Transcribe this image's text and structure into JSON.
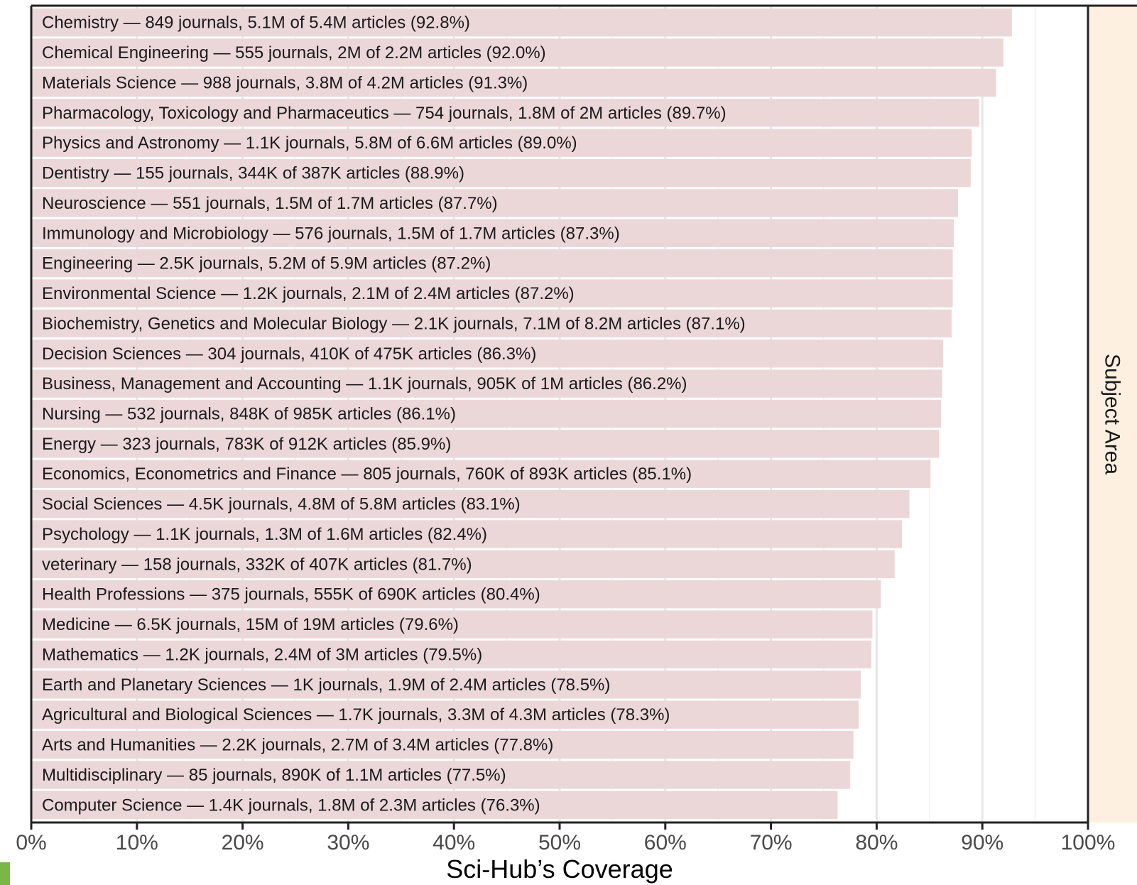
{
  "chart_data": {
    "type": "bar",
    "orientation": "horizontal",
    "xlabel": "Sci-Hub’s Coverage",
    "ylabel": "",
    "facet_label": "Subject Area",
    "xlim": [
      0,
      100
    ],
    "x_unit": "%",
    "x_ticks": [
      "0%",
      "10%",
      "20%",
      "30%",
      "40%",
      "50%",
      "60%",
      "70%",
      "80%",
      "90%",
      "100%"
    ],
    "grid": true,
    "bar_color": "#ecd7d8",
    "facet_color": "#fdf0e1",
    "categories": [
      "Chemistry — 849 journals, 5.1M of 5.4M articles (92.8%)",
      "Chemical Engineering — 555 journals, 2M of 2.2M articles (92.0%)",
      "Materials Science — 988 journals, 3.8M of 4.2M articles (91.3%)",
      "Pharmacology, Toxicology and Pharmaceutics — 754 journals, 1.8M of 2M articles (89.7%)",
      "Physics and Astronomy — 1.1K journals, 5.8M of 6.6M articles (89.0%)",
      "Dentistry — 155 journals, 344K of 387K articles (88.9%)",
      "Neuroscience — 551 journals, 1.5M of 1.7M articles (87.7%)",
      "Immunology and Microbiology — 576 journals, 1.5M of 1.7M articles (87.3%)",
      "Engineering — 2.5K journals, 5.2M of 5.9M articles (87.2%)",
      "Environmental Science — 1.2K journals, 2.1M of 2.4M articles (87.2%)",
      "Biochemistry, Genetics and Molecular Biology — 2.1K journals, 7.1M of 8.2M articles (87.1%)",
      "Decision Sciences — 304 journals, 410K of 475K articles (86.3%)",
      "Business, Management and Accounting — 1.1K journals, 905K of 1M articles (86.2%)",
      "Nursing — 532 journals, 848K of 985K articles (86.1%)",
      "Energy — 323 journals, 783K of 912K articles (85.9%)",
      "Economics, Econometrics and Finance — 805 journals, 760K of 893K articles (85.1%)",
      "Social Sciences — 4.5K journals, 4.8M of 5.8M articles (83.1%)",
      "Psychology — 1.1K journals, 1.3M of 1.6M articles (82.4%)",
      "veterinary — 158 journals, 332K of 407K articles (81.7%)",
      "Health Professions — 375 journals, 555K of 690K articles (80.4%)",
      "Medicine — 6.5K journals, 15M of 19M articles (79.6%)",
      "Mathematics — 1.2K journals, 2.4M of 3M articles (79.5%)",
      "Earth and Planetary Sciences — 1K journals, 1.9M of 2.4M articles (78.5%)",
      "Agricultural and Biological Sciences — 1.7K journals, 3.3M of 4.3M articles (78.3%)",
      "Arts and Humanities — 2.2K journals, 2.7M of 3.4M articles (77.8%)",
      "Multidisciplinary — 85 journals, 890K of 1.1M articles (77.5%)",
      "Computer Science — 1.4K journals, 1.8M of 2.3M articles (76.3%)"
    ],
    "values": [
      92.8,
      92.0,
      91.3,
      89.7,
      89.0,
      88.9,
      87.7,
      87.3,
      87.2,
      87.2,
      87.1,
      86.3,
      86.2,
      86.1,
      85.9,
      85.1,
      83.1,
      82.4,
      81.7,
      80.4,
      79.6,
      79.5,
      78.5,
      78.3,
      77.8,
      77.5,
      76.3
    ]
  }
}
